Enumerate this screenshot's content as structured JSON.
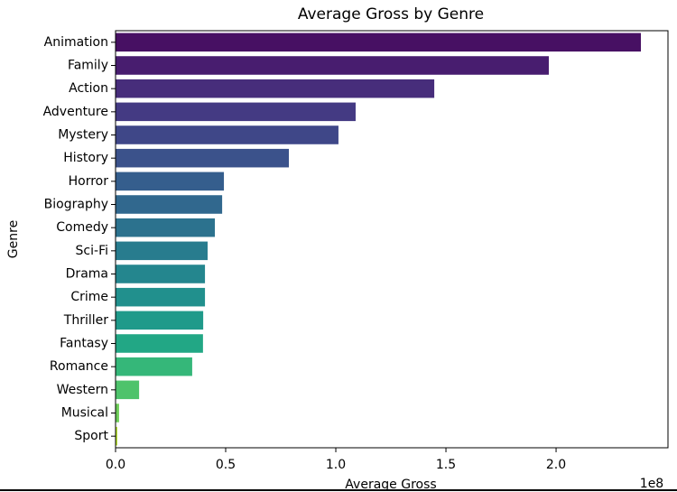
{
  "chart_data": {
    "type": "barh",
    "title": "Average Gross by Genre",
    "x_label": "Average Gross",
    "y_label": "Genre",
    "x_offset_label": "1e8",
    "categories": [
      "Animation",
      "Family",
      "Action",
      "Adventure",
      "Mystery",
      "History",
      "Horror",
      "Biography",
      "Comedy",
      "Sci-Fi",
      "Drama",
      "Crime",
      "Thriller",
      "Fantasy",
      "Romance",
      "Western",
      "Musical",
      "Sport"
    ],
    "values": [
      2.385,
      1.967,
      1.447,
      1.09,
      1.012,
      0.787,
      0.492,
      0.484,
      0.451,
      0.418,
      0.406,
      0.406,
      0.398,
      0.397,
      0.348,
      0.107,
      0.016,
      0.008
    ],
    "colors": [
      "#471063",
      "#481d6f",
      "#472d7b",
      "#443a83",
      "#3f4788",
      "#3b528b",
      "#355e8d",
      "#31688e",
      "#2c728e",
      "#287c8e",
      "#24868e",
      "#21908d",
      "#1f9a8a",
      "#22a785",
      "#35b779",
      "#4ec36b",
      "#6ece58",
      "#b5de2b"
    ],
    "xlim": [
      0,
      2.508
    ],
    "xticks": [
      {
        "value": 0,
        "label": "0.0"
      },
      {
        "value": 0.5,
        "label": "0.5"
      },
      {
        "value": 1,
        "label": "1.0"
      },
      {
        "value": 1.5,
        "label": "1.5"
      },
      {
        "value": 2,
        "label": "2.0"
      }
    ]
  }
}
